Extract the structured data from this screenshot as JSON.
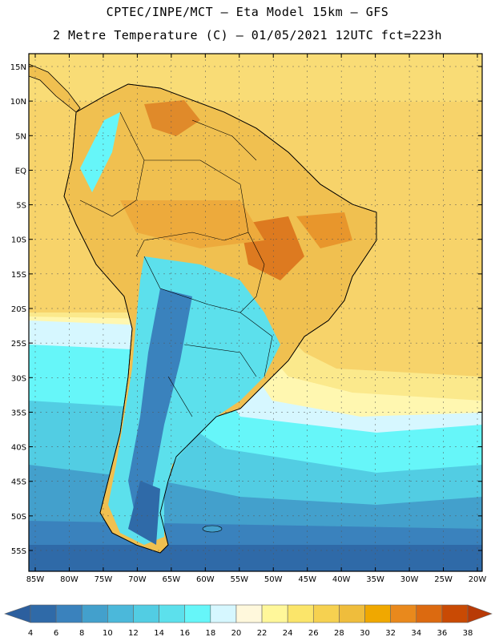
{
  "title_line1": "CPTEC/INPE/MCT –  Eta Model 15km – GFS",
  "title_line2": "2 Metre Temperature (C) – 01/05/2021 12UTC fct=223h",
  "lat_labels": [
    "15N",
    "10N",
    "5N",
    "EQ",
    "5S",
    "10S",
    "15S",
    "20S",
    "25S",
    "30S",
    "35S",
    "40S",
    "45S",
    "50S",
    "55S"
  ],
  "lat_values": [
    15,
    10,
    5,
    0,
    -5,
    -10,
    -15,
    -20,
    -25,
    -30,
    -35,
    -40,
    -45,
    -50,
    -55
  ],
  "lon_labels": [
    "85W",
    "80W",
    "75W",
    "70W",
    "65W",
    "60W",
    "55W",
    "50W",
    "45W",
    "40W",
    "35W",
    "30W",
    "25W",
    "20W"
  ],
  "lon_values": [
    -85,
    -80,
    -75,
    -70,
    -65,
    -60,
    -55,
    -50,
    -45,
    -40,
    -35,
    -30,
    -25,
    -20
  ],
  "colorbar": {
    "labels": [
      "4",
      "6",
      "8",
      "10",
      "12",
      "14",
      "16",
      "18",
      "20",
      "22",
      "24",
      "26",
      "28",
      "30",
      "32",
      "34",
      "36",
      "38"
    ],
    "colors": [
      "#2f6aa8",
      "#3a82bd",
      "#43a0cc",
      "#4bb8da",
      "#52cde3",
      "#5ce0ec",
      "#66f6f9",
      "#d6f7ff",
      "#fff8dc",
      "#fff79a",
      "#fbe56a",
      "#f6d150",
      "#efbd3c",
      "#f0a800",
      "#e9891c",
      "#dc6a10",
      "#c94a04"
    ],
    "low_color": "#2c5f9e",
    "high_color": "#b83a06"
  },
  "cities": []
}
